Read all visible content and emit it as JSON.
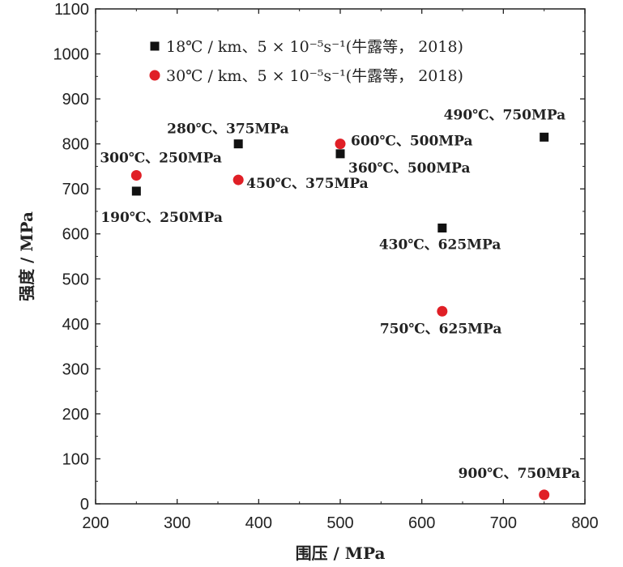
{
  "chart_data": {
    "type": "scatter",
    "title": "",
    "xlabel": "围压 / MPa",
    "ylabel": "强度 / MPa",
    "xlim": [
      200,
      800
    ],
    "ylim": [
      0,
      1100
    ],
    "xticks": [
      "200",
      "300",
      "400",
      "500",
      "600",
      "700",
      "800"
    ],
    "yticks": [
      "0",
      "100",
      "200",
      "300",
      "400",
      "500",
      "600",
      "700",
      "800",
      "900",
      "1000",
      "1100"
    ],
    "grid": false,
    "legend_position": "top-left",
    "series": [
      {
        "name": "18℃ / km、5 × 10⁻⁵s⁻¹(牛露等， 2018)",
        "marker": "square",
        "color": "#111111",
        "points": [
          {
            "x": 250,
            "y": 695,
            "label": "190℃、250MPa"
          },
          {
            "x": 375,
            "y": 800,
            "label": "280℃、375MPa"
          },
          {
            "x": 500,
            "y": 778,
            "label": "360℃、500MPa"
          },
          {
            "x": 625,
            "y": 613,
            "label": "430℃、625MPa"
          },
          {
            "x": 750,
            "y": 815,
            "label": "490℃、750MPa"
          }
        ]
      },
      {
        "name": "30℃ / km、5 × 10⁻⁵s⁻¹(牛露等， 2018)",
        "marker": "circle",
        "color": "#e01f26",
        "points": [
          {
            "x": 250,
            "y": 730,
            "label": "300℃、250MPa"
          },
          {
            "x": 375,
            "y": 720,
            "label": "450℃、375MPa"
          },
          {
            "x": 500,
            "y": 800,
            "label": "600℃、500MPa"
          },
          {
            "x": 625,
            "y": 428,
            "label": "750℃、625MPa"
          },
          {
            "x": 750,
            "y": 20,
            "label": "900℃、750MPa"
          }
        ]
      }
    ]
  }
}
